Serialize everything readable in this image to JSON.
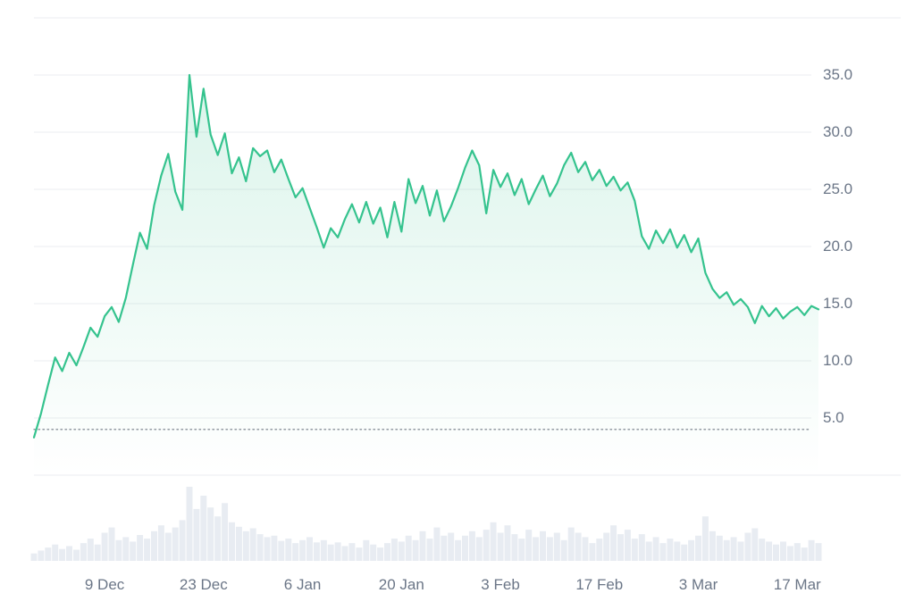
{
  "chart_data": {
    "type": "area",
    "title": "",
    "xlabel": "",
    "ylabel": "",
    "y_ticks": [
      5.0,
      10.0,
      15.0,
      20.0,
      25.0,
      30.0,
      35.0
    ],
    "y_tick_labels": [
      "5.0",
      "10.0",
      "15.0",
      "20.0",
      "25.0",
      "30.0",
      "35.0"
    ],
    "ylim": [
      0,
      40
    ],
    "grid": true,
    "legend": "none",
    "reference_value": 4.0,
    "x_tick_labels": [
      "9 Dec",
      "23 Dec",
      "6 Jan",
      "20 Jan",
      "3 Feb",
      "17 Feb",
      "3 Mar",
      "17 Mar"
    ],
    "x_tick_indices": [
      10,
      24,
      38,
      52,
      66,
      80,
      94,
      108
    ],
    "series": [
      {
        "name": "price",
        "values": [
          3.3,
          5.4,
          7.9,
          10.3,
          9.1,
          10.7,
          9.6,
          11.2,
          12.9,
          12.1,
          13.9,
          14.7,
          13.4,
          15.5,
          18.4,
          21.2,
          19.8,
          23.6,
          26.2,
          28.1,
          24.8,
          23.2,
          35.0,
          29.6,
          33.8,
          29.8,
          28.0,
          29.9,
          26.4,
          27.8,
          25.7,
          28.6,
          27.9,
          28.4,
          26.5,
          27.6,
          25.9,
          24.3,
          25.1,
          23.4,
          21.7,
          19.9,
          21.6,
          20.8,
          22.4,
          23.7,
          22.1,
          23.9,
          22.0,
          23.4,
          20.8,
          23.9,
          21.3,
          25.9,
          23.8,
          25.3,
          22.7,
          24.9,
          22.2,
          23.5,
          25.1,
          26.9,
          28.4,
          27.1,
          22.9,
          26.7,
          25.2,
          26.4,
          24.5,
          25.9,
          23.7,
          25.0,
          26.2,
          24.4,
          25.5,
          27.1,
          28.2,
          26.5,
          27.4,
          25.8,
          26.7,
          25.3,
          26.1,
          24.9,
          25.6,
          24.0,
          20.9,
          19.8,
          21.4,
          20.3,
          21.5,
          19.9,
          21.0,
          19.5,
          20.7,
          17.7,
          16.3,
          15.5,
          16.0,
          14.9,
          15.4,
          14.7,
          13.3,
          14.8,
          13.9,
          14.6,
          13.7,
          14.3,
          14.7,
          14.0,
          14.8,
          14.5
        ]
      }
    ],
    "volume": [
      10,
      14,
      18,
      22,
      16,
      20,
      15,
      24,
      30,
      22,
      38,
      45,
      28,
      32,
      26,
      35,
      30,
      40,
      48,
      38,
      45,
      55,
      100,
      70,
      88,
      72,
      60,
      78,
      52,
      46,
      40,
      44,
      36,
      32,
      34,
      27,
      30,
      24,
      28,
      32,
      25,
      28,
      22,
      25,
      20,
      24,
      18,
      28,
      22,
      18,
      24,
      30,
      26,
      34,
      28,
      40,
      30,
      45,
      34,
      38,
      28,
      34,
      40,
      32,
      42,
      52,
      38,
      48,
      36,
      30,
      42,
      32,
      40,
      32,
      38,
      28,
      45,
      38,
      32,
      24,
      30,
      38,
      48,
      36,
      42,
      30,
      36,
      26,
      32,
      24,
      30,
      26,
      22,
      28,
      34,
      60,
      40,
      34,
      28,
      32,
      26,
      38,
      44,
      30,
      26,
      22,
      26,
      20,
      24,
      18,
      28,
      24
    ],
    "colors": {
      "line": "#35c38e",
      "fill_top": "rgba(53,195,142,0.18)",
      "fill_bottom": "rgba(53,195,142,0)",
      "volume": "#e8ecf2",
      "grid": "#ebedf0",
      "axis_text": "#6b7687",
      "reference": "#878f98",
      "background": "#ffffff"
    }
  }
}
